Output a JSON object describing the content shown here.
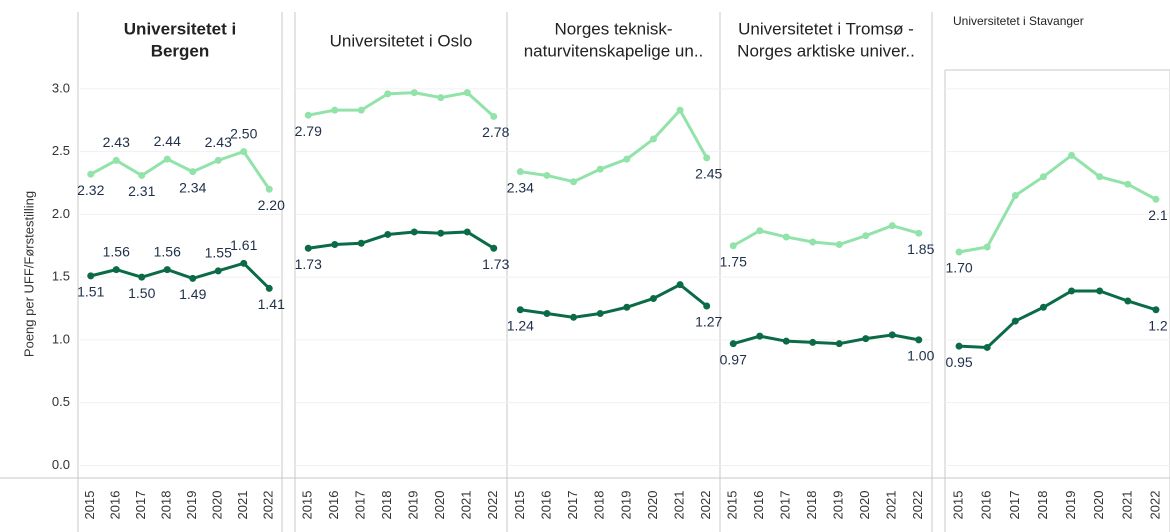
{
  "chart_data": [
    {
      "type": "line",
      "title": [
        "Universitetet i",
        "Bergen"
      ],
      "title_bold": true,
      "y_label": "Poeng per UFF/Førstestilling",
      "categories": [
        "2015",
        "2016",
        "2017",
        "2018",
        "2019",
        "2020",
        "2021",
        "2022"
      ],
      "ylim": [
        -0.1,
        3.15
      ],
      "yticks": [
        {
          "value": 0,
          "label": "0.0"
        },
        0.5,
        {
          "value": 1,
          "label": "1.0"
        },
        1.5,
        {
          "value": 2,
          "label": "2.0"
        },
        2.5,
        {
          "value": 3,
          "label": "3.0"
        }
      ],
      "grid": true,
      "series": [
        {
          "color": "#92e3a9",
          "values": [
            2.32,
            2.43,
            2.31,
            2.44,
            2.34,
            2.43,
            2.5,
            2.2
          ],
          "value_labels": [
            "2.32",
            "2.43",
            "2.31",
            "2.44",
            "2.34",
            "2.43",
            "2.50",
            "2.20"
          ]
        },
        {
          "color": "#0b6b47",
          "values": [
            1.51,
            1.56,
            1.5,
            1.56,
            1.49,
            1.55,
            1.61,
            1.41
          ],
          "value_labels": [
            "1.51",
            "1.56",
            "1.50",
            "1.56",
            "1.49",
            "1.55",
            "1.61",
            "1.41"
          ]
        }
      ]
    },
    {
      "type": "line",
      "title": [
        "Universitetet i Oslo"
      ],
      "categories": [
        "2015",
        "2016",
        "2017",
        "2018",
        "2019",
        "2020",
        "2021",
        "2022"
      ],
      "ylim": [
        -0.1,
        3.15
      ],
      "grid": true,
      "series": [
        {
          "color": "#92e3a9",
          "values": [
            2.79,
            2.83,
            2.83,
            2.96,
            2.97,
            2.93,
            2.97,
            2.78
          ],
          "value_labels": [
            "2.79",
            null,
            null,
            null,
            null,
            null,
            null,
            "2.78"
          ]
        },
        {
          "color": "#0b6b47",
          "values": [
            1.73,
            1.76,
            1.77,
            1.84,
            1.86,
            1.85,
            1.86,
            1.73
          ],
          "value_labels": [
            "1.73",
            null,
            null,
            null,
            null,
            null,
            null,
            "1.73"
          ]
        }
      ]
    },
    {
      "type": "line",
      "title": [
        "Norges teknisk-",
        "naturvitenskapelige un.."
      ],
      "categories": [
        "2015",
        "2016",
        "2017",
        "2018",
        "2019",
        "2020",
        "2021",
        "2022"
      ],
      "ylim": [
        -0.1,
        3.15
      ],
      "grid": true,
      "series": [
        {
          "color": "#92e3a9",
          "values": [
            2.34,
            2.31,
            2.26,
            2.36,
            2.44,
            2.6,
            2.83,
            2.45
          ],
          "value_labels": [
            "2.34",
            null,
            null,
            null,
            null,
            null,
            null,
            "2.45"
          ]
        },
        {
          "color": "#0b6b47",
          "values": [
            1.24,
            1.21,
            1.18,
            1.21,
            1.26,
            1.33,
            1.44,
            1.27
          ],
          "value_labels": [
            "1.24",
            null,
            null,
            null,
            null,
            null,
            null,
            "1.27"
          ]
        }
      ]
    },
    {
      "type": "line",
      "title": [
        "Universitetet i Tromsø -",
        "Norges arktiske univer.."
      ],
      "categories": [
        "2015",
        "2016",
        "2017",
        "2018",
        "2019",
        "2020",
        "2021",
        "2022"
      ],
      "ylim": [
        -0.1,
        3.15
      ],
      "grid": true,
      "series": [
        {
          "color": "#92e3a9",
          "values": [
            1.75,
            1.87,
            1.82,
            1.78,
            1.76,
            1.83,
            1.91,
            1.85
          ],
          "value_labels": [
            "1.75",
            null,
            null,
            null,
            null,
            null,
            null,
            "1.85"
          ]
        },
        {
          "color": "#0b6b47",
          "values": [
            0.97,
            1.03,
            0.99,
            0.98,
            0.97,
            1.01,
            1.04,
            1.0
          ],
          "value_labels": [
            "0.97",
            null,
            null,
            null,
            null,
            null,
            null,
            "1.00"
          ]
        }
      ]
    },
    {
      "type": "line",
      "title": [
        "Universitetet i Stavanger"
      ],
      "title_small": true,
      "categories": [
        "2015",
        "2016",
        "2017",
        "2018",
        "2019",
        "2020",
        "2021",
        "2022"
      ],
      "ylim": [
        -0.1,
        3.15
      ],
      "grid": true,
      "series": [
        {
          "color": "#92e3a9",
          "values": [
            1.7,
            1.74,
            2.15,
            2.3,
            2.47,
            2.3,
            2.24,
            2.12
          ],
          "value_labels": [
            "1.70",
            null,
            null,
            null,
            null,
            null,
            null,
            "2.1"
          ]
        },
        {
          "color": "#0b6b47",
          "values": [
            0.95,
            0.94,
            1.15,
            1.26,
            1.39,
            1.39,
            1.31,
            1.24
          ],
          "value_labels": [
            "0.95",
            null,
            null,
            null,
            null,
            null,
            null,
            "1.2"
          ]
        }
      ]
    }
  ]
}
